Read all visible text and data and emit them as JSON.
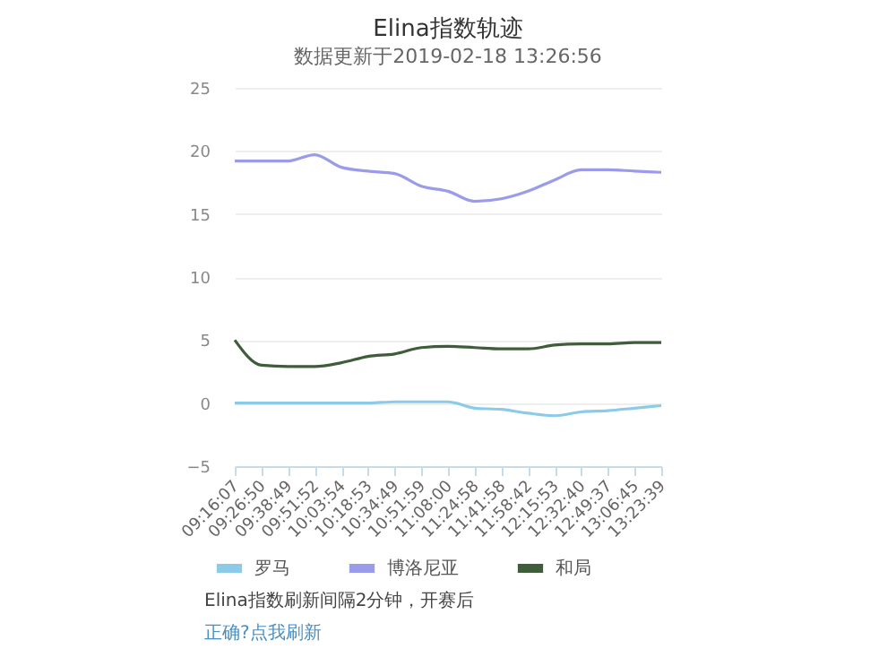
{
  "chart_data": {
    "type": "line",
    "title": "Elina指数轨迹",
    "subtitle": "数据更新于2019-02-18 13:26:56",
    "categories": [
      "09:16:07",
      "09:26:50",
      "09:38:49",
      "09:51:52",
      "10:03:54",
      "10:18:53",
      "10:34:49",
      "10:51:59",
      "11:08:00",
      "11:24:58",
      "11:41:58",
      "11:58:42",
      "12:15:53",
      "12:32:40",
      "12:49:37",
      "13:06:45",
      "13:23:39"
    ],
    "series": [
      {
        "name": "罗马",
        "color": "#8ccbe8",
        "values": [
          0,
          0,
          0,
          0,
          0,
          0,
          0.1,
          0.1,
          0.1,
          -0.4,
          -0.5,
          -0.8,
          -1.0,
          -0.7,
          -0.6,
          -0.4,
          -0.2
        ]
      },
      {
        "name": "博洛尼亚",
        "color": "#9a9cea",
        "values": [
          19.2,
          19.2,
          19.2,
          19.7,
          18.7,
          18.4,
          18.2,
          17.2,
          16.8,
          16.0,
          16.2,
          16.8,
          17.7,
          18.5,
          18.5,
          18.4,
          18.3
        ]
      },
      {
        "name": "和局",
        "color": "#3f5d3a",
        "values": [
          5.0,
          3.0,
          2.9,
          2.9,
          3.2,
          3.7,
          3.9,
          4.4,
          4.5,
          4.4,
          4.3,
          4.3,
          4.6,
          4.7,
          4.7,
          4.8,
          4.8
        ]
      }
    ],
    "ylim": [
      -5,
      25
    ],
    "yticks": [
      -5,
      0,
      5,
      10,
      15,
      20,
      25
    ],
    "grid": "y",
    "legend": "bottom",
    "marker": "none",
    "line_style": "solid",
    "annotations": [
      "Elina指数刷新间隔2分钟，开赛后",
      "正确?点我刷新"
    ]
  }
}
